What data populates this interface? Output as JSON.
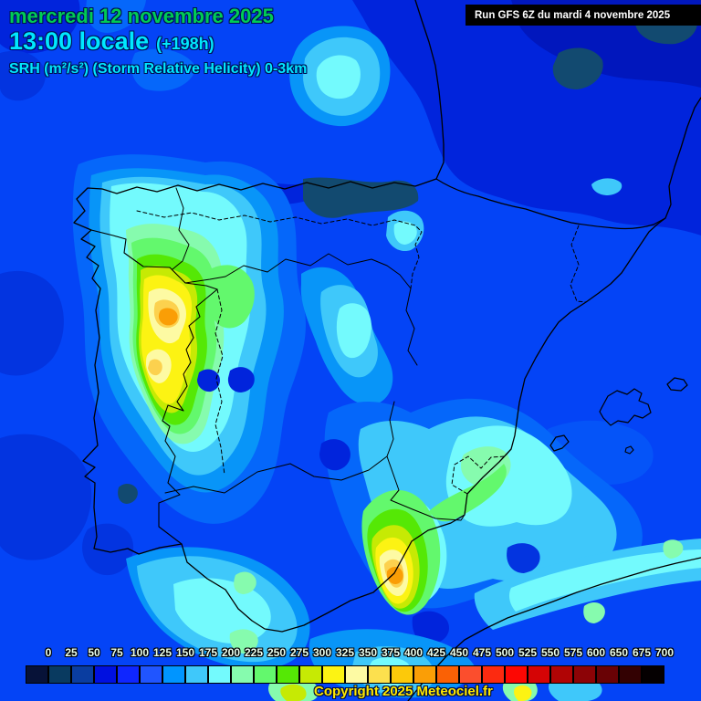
{
  "header": {
    "date_line": "mercredi 12 novembre 2025",
    "time_line": "13:00 locale",
    "forecast_offset": "(+198h)",
    "parameter_line": "SRH (m²/s²) (Storm Relative Helicity) 0-3km",
    "run_line": "Run GFS 6Z du mardi 4 novembre 2025"
  },
  "colors": {
    "date_text": "#00cc55",
    "time_text": "#00e8ff",
    "parameter_text": "#00e8ff",
    "run_text": "#ffffff",
    "run_background": "#000000",
    "copyright_text": "#ffe800"
  },
  "legend": {
    "labels": [
      "0",
      "25",
      "50",
      "75",
      "100",
      "125",
      "150",
      "175",
      "200",
      "225",
      "250",
      "275",
      "300",
      "325",
      "350",
      "375",
      "400",
      "425",
      "450",
      "475",
      "500",
      "525",
      "550",
      "575",
      "600",
      "650",
      "675",
      "700"
    ],
    "colors": [
      "#071238",
      "#093a60",
      "#0a3da0",
      "#0010e0",
      "#0f26ff",
      "#2055ff",
      "#0095ff",
      "#3fc8fa",
      "#73fafd",
      "#86fbae",
      "#63f86d",
      "#55e805",
      "#c6ea04",
      "#fcf313",
      "#fdfaa3",
      "#fce04e",
      "#fcc90a",
      "#fa9e06",
      "#fa6105",
      "#fb4e2d",
      "#fc2a10",
      "#fd0703",
      "#d50405",
      "#b00405",
      "#8c0306",
      "#690205",
      "#330102",
      "#050001"
    ]
  },
  "footer": {
    "copyright": "Copyright 2025 Meteociel.fr"
  }
}
